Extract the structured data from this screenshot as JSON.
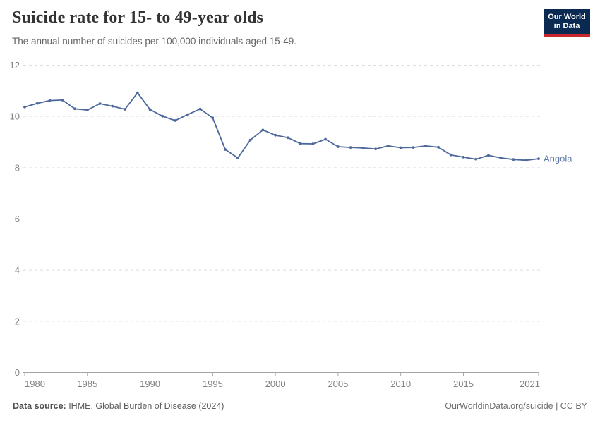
{
  "header": {
    "title": "Suicide rate for 15- to 49-year olds",
    "subtitle": "The annual number of suicides per 100,000 individuals aged 15-49.",
    "logo_line1": "Our World",
    "logo_line2": "in Data"
  },
  "chart_data": {
    "type": "line",
    "title": "Suicide rate for 15- to 49-year olds",
    "xlabel": "",
    "ylabel": "",
    "xlim": [
      1980,
      2021
    ],
    "ylim": [
      0,
      12
    ],
    "grid": "horizontal-dashed",
    "legend_position": "end-of-line-label",
    "x_tick_labels": [
      "1980",
      "1985",
      "1990",
      "1995",
      "2000",
      "2005",
      "2010",
      "2015",
      "2021"
    ],
    "x_ticks": [
      1980,
      1985,
      1990,
      1995,
      2000,
      2005,
      2010,
      2015,
      2021
    ],
    "y_ticks": [
      0,
      2,
      4,
      6,
      8,
      10,
      12
    ],
    "y_tick_labels": [
      "0",
      "2",
      "4",
      "6",
      "8",
      "10",
      "12"
    ],
    "series": [
      {
        "name": "Angola",
        "color": "#4d689b",
        "label_color": "#5b79a8",
        "x": [
          1980,
          1981,
          1982,
          1983,
          1984,
          1985,
          1986,
          1987,
          1988,
          1989,
          1990,
          1991,
          1992,
          1993,
          1994,
          1995,
          1996,
          1997,
          1998,
          1999,
          2000,
          2001,
          2002,
          2003,
          2004,
          2005,
          2006,
          2007,
          2008,
          2009,
          2010,
          2011,
          2012,
          2013,
          2014,
          2015,
          2016,
          2017,
          2018,
          2019,
          2020,
          2021
        ],
        "values": [
          10.37,
          10.51,
          10.62,
          10.64,
          10.3,
          10.25,
          10.5,
          10.4,
          10.28,
          10.92,
          10.27,
          10.01,
          9.84,
          10.07,
          10.29,
          9.94,
          8.71,
          8.38,
          9.08,
          9.47,
          9.27,
          9.17,
          8.94,
          8.93,
          9.11,
          8.82,
          8.79,
          8.77,
          8.73,
          8.85,
          8.78,
          8.79,
          8.85,
          8.8,
          8.5,
          8.41,
          8.33,
          8.48,
          8.38,
          8.32,
          8.29,
          8.35
        ]
      }
    ],
    "colors": {
      "gridline": "#dddddd",
      "axis": "#a5a5a5",
      "tick_label": "#818181"
    }
  },
  "footer": {
    "source_label": "Data source:",
    "source_text": " IHME, Global Burden of Disease (2024)",
    "credit": "OurWorldinData.org/suicide | CC BY"
  }
}
